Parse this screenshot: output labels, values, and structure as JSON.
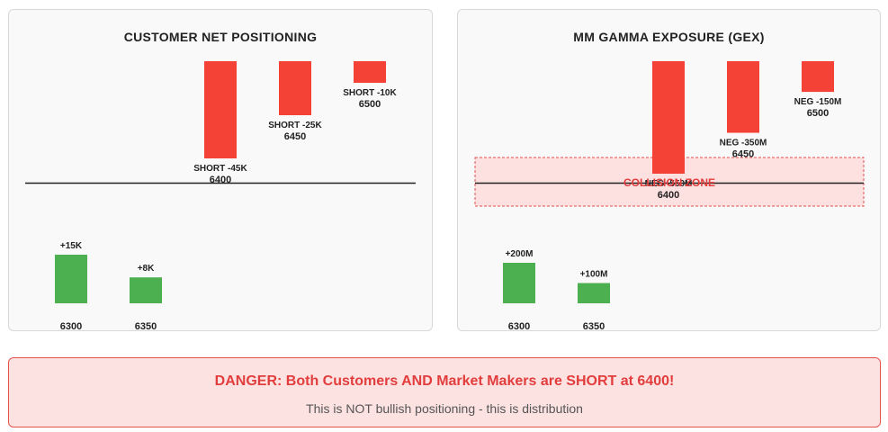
{
  "colors": {
    "positive": "#4caf50",
    "negative": "#f44336",
    "zone_fill": "#fde0e0",
    "zone_border": "#e35050",
    "zone_text": "#e23d3d",
    "baseline": "#222222"
  },
  "chart_data": [
    {
      "type": "bar",
      "title": "CUSTOMER NET POSITIONING",
      "categories": [
        "6300",
        "6350",
        "6400",
        "6450",
        "6500"
      ],
      "values": [
        15,
        8,
        -45,
        -25,
        -10
      ],
      "value_labels": [
        "+15K",
        "+8K",
        "SHORT -45K",
        "SHORT -25K",
        "SHORT -10K"
      ],
      "units": "K",
      "ylim": [
        -45,
        15
      ],
      "grid": false,
      "legend": "none"
    },
    {
      "type": "bar",
      "title": "MM GAMMA EXPOSURE (GEX)",
      "categories": [
        "6300",
        "6350",
        "6400",
        "6450",
        "6500"
      ],
      "values": [
        200,
        100,
        -550,
        -350,
        -150
      ],
      "value_labels": [
        "+200M",
        "+100M",
        "NEG -550M",
        "NEG -350M",
        "NEG -150M"
      ],
      "units": "M",
      "ylim": [
        -550,
        200
      ],
      "grid": false,
      "legend": "none",
      "annotation": "COLLISION ZONE"
    }
  ],
  "alert": {
    "title": "DANGER: Both Customers AND Market Makers are SHORT at 6400!",
    "subtitle": "This is NOT bullish positioning - this is distribution"
  }
}
